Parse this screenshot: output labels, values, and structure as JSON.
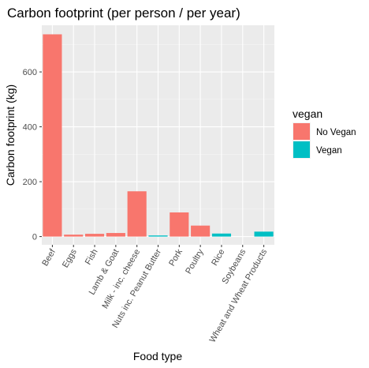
{
  "chart_data": {
    "type": "bar",
    "title": "Carbon footprint (per person / per year)",
    "xlabel": "Food type",
    "ylabel": "Carbon footprint (kg)",
    "ylim": [
      -30,
      770
    ],
    "yticks": [
      0,
      200,
      400,
      600
    ],
    "grid": true,
    "legend": {
      "title": "vegan",
      "position": "right",
      "entries": [
        {
          "name": "No Vegan",
          "color": "#F8766D"
        },
        {
          "name": "Vegan",
          "color": "#00BFC4"
        }
      ]
    },
    "categories": [
      "Beef",
      "Eggs",
      "Fish",
      "Lamb & Goat",
      "Milk - inc. cheese",
      "Nuts inc. Peanut Butter",
      "Pork",
      "Poultry",
      "Rice",
      "Soybeans",
      "Wheat and Wheat Products"
    ],
    "values": [
      737,
      7,
      10,
      13,
      165,
      4,
      88,
      40,
      11,
      0,
      18
    ],
    "group": [
      "No Vegan",
      "No Vegan",
      "No Vegan",
      "No Vegan",
      "No Vegan",
      "Vegan",
      "No Vegan",
      "No Vegan",
      "Vegan",
      "Vegan",
      "Vegan"
    ]
  },
  "colors": {
    "panel_bg": "#EBEBEB",
    "grid_major": "#FFFFFF",
    "no_vegan": "#F8766D",
    "vegan": "#00BFC4"
  }
}
